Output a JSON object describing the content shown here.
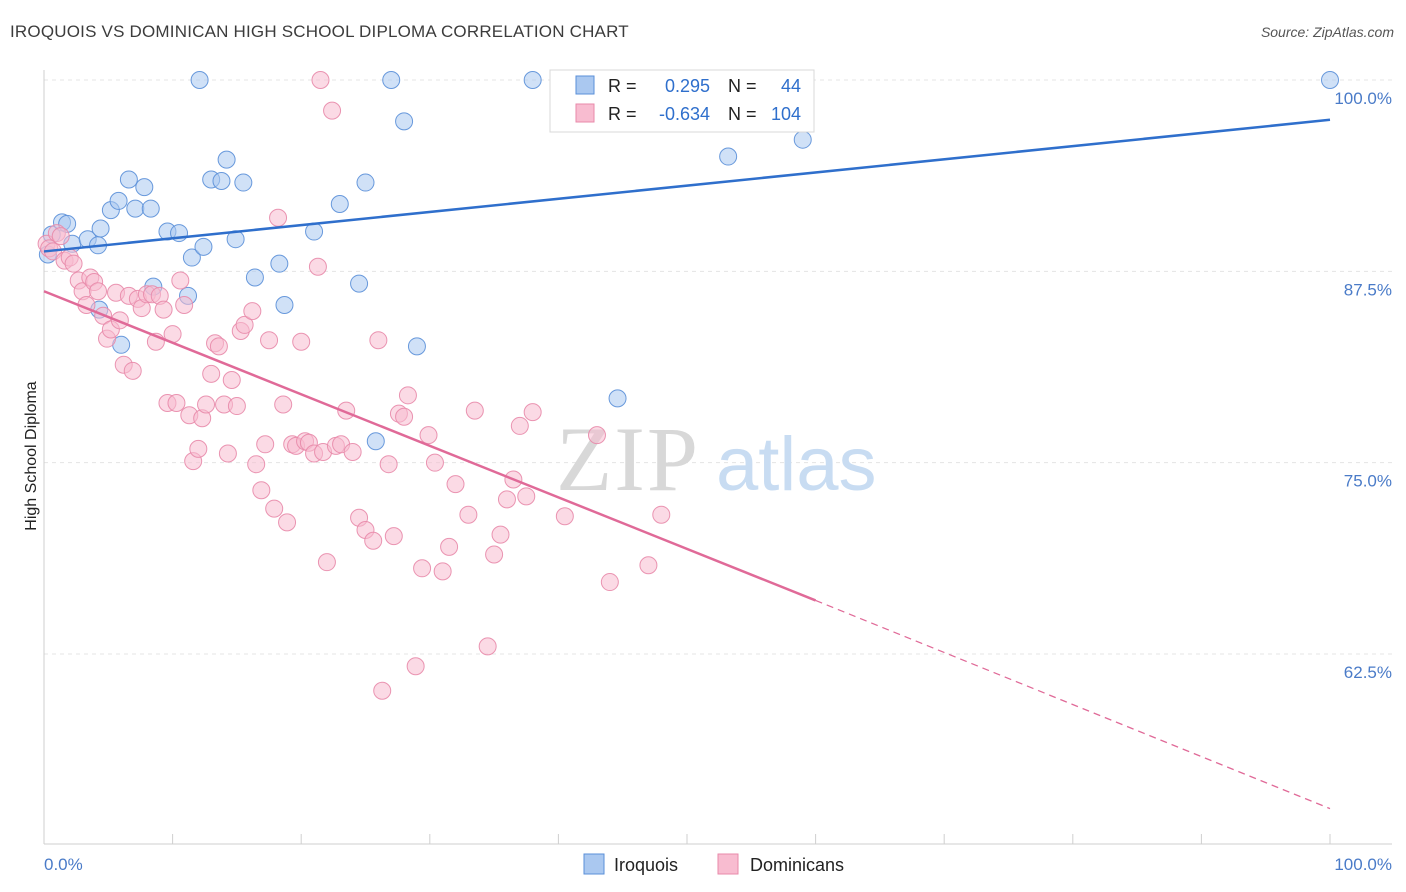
{
  "header": {
    "title": "IROQUOIS VS DOMINICAN HIGH SCHOOL DIPLOMA CORRELATION CHART",
    "source": "Source: ZipAtlas.com"
  },
  "watermark": {
    "zip": "ZIP",
    "atlas": "atlas"
  },
  "legend_box": {
    "rows": [
      {
        "r_label": "R =",
        "r_value": "0.295",
        "n_label": "N =",
        "n_value": "44"
      },
      {
        "r_label": "R =",
        "r_value": "-0.634",
        "n_label": "N =",
        "n_value": "104"
      }
    ]
  },
  "colors": {
    "iroquois_fill": "#aac8f0",
    "iroquois_stroke": "#5a8fd8",
    "iroquois_line": "#2f6fcc",
    "dominican_fill": "#f8bcd0",
    "dominican_stroke": "#e88aaa",
    "dominican_line": "#e06a98",
    "tick_text": "#4a7bc8"
  },
  "chart_data": {
    "type": "scatter",
    "ylabel": "High School Diploma",
    "xlim": [
      0,
      100
    ],
    "ylim": [
      51.5,
      101.5
    ],
    "x_tick_labels": [
      "0.0%",
      "100.0%"
    ],
    "y_ticks": [
      {
        "value": 100,
        "label": "100.0%"
      },
      {
        "value": 87.5,
        "label": "87.5%"
      },
      {
        "value": 75,
        "label": "75.0%"
      },
      {
        "value": 62.5,
        "label": "62.5%"
      }
    ],
    "legend": [
      "Iroquois",
      "Dominicans"
    ],
    "series": [
      {
        "name": "Iroquois",
        "trend": {
          "x": [
            0,
            100
          ],
          "y": [
            88.8,
            97.4
          ],
          "dashed_from": null
        },
        "points": [
          [
            0.3,
            88.6
          ],
          [
            0.6,
            89.9
          ],
          [
            1.4,
            90.7
          ],
          [
            1.8,
            90.6
          ],
          [
            2.2,
            89.3
          ],
          [
            3.4,
            89.6
          ],
          [
            4.2,
            89.2
          ],
          [
            4.3,
            85.0
          ],
          [
            4.4,
            90.3
          ],
          [
            5.2,
            91.5
          ],
          [
            5.8,
            92.1
          ],
          [
            6.0,
            82.7
          ],
          [
            6.6,
            93.5
          ],
          [
            7.1,
            91.6
          ],
          [
            7.8,
            93.0
          ],
          [
            8.3,
            91.6
          ],
          [
            8.5,
            86.5
          ],
          [
            9.6,
            90.1
          ],
          [
            10.5,
            90.0
          ],
          [
            11.5,
            88.4
          ],
          [
            11.2,
            85.9
          ],
          [
            12.1,
            100.0
          ],
          [
            12.4,
            89.1
          ],
          [
            13.0,
            93.5
          ],
          [
            13.8,
            93.4
          ],
          [
            14.2,
            94.8
          ],
          [
            14.9,
            89.6
          ],
          [
            15.5,
            93.3
          ],
          [
            16.4,
            87.1
          ],
          [
            18.3,
            88.0
          ],
          [
            18.7,
            85.3
          ],
          [
            21.0,
            90.1
          ],
          [
            23.0,
            91.9
          ],
          [
            24.5,
            86.7
          ],
          [
            25.0,
            93.3
          ],
          [
            25.8,
            76.4
          ],
          [
            27.0,
            100.0
          ],
          [
            28.0,
            97.3
          ],
          [
            29.0,
            82.6
          ],
          [
            38.0,
            100.0
          ],
          [
            44.6,
            79.2
          ],
          [
            53.2,
            95.0
          ],
          [
            59.0,
            96.1
          ],
          [
            100.0,
            100.0
          ]
        ]
      },
      {
        "name": "Dominicans",
        "trend": {
          "x": [
            0,
            60,
            100
          ],
          "y": [
            86.2,
            66.0,
            52.4
          ],
          "dashed_from": 60
        },
        "points": [
          [
            0.2,
            89.3
          ],
          [
            0.4,
            89.0
          ],
          [
            0.7,
            88.8
          ],
          [
            1.0,
            90.0
          ],
          [
            1.3,
            89.8
          ],
          [
            1.6,
            88.2
          ],
          [
            2.0,
            88.4
          ],
          [
            2.3,
            88.0
          ],
          [
            2.7,
            86.9
          ],
          [
            3.0,
            86.2
          ],
          [
            3.3,
            85.3
          ],
          [
            3.6,
            87.1
          ],
          [
            3.9,
            86.8
          ],
          [
            4.2,
            86.2
          ],
          [
            4.6,
            84.6
          ],
          [
            4.9,
            83.1
          ],
          [
            5.2,
            83.7
          ],
          [
            5.6,
            86.1
          ],
          [
            5.9,
            84.3
          ],
          [
            6.2,
            81.4
          ],
          [
            6.6,
            85.9
          ],
          [
            6.9,
            81.0
          ],
          [
            7.3,
            85.7
          ],
          [
            7.6,
            85.1
          ],
          [
            8.0,
            86.0
          ],
          [
            8.4,
            86.0
          ],
          [
            8.7,
            82.9
          ],
          [
            9.0,
            85.9
          ],
          [
            9.3,
            85.0
          ],
          [
            9.6,
            78.9
          ],
          [
            10.0,
            83.4
          ],
          [
            10.3,
            78.9
          ],
          [
            10.6,
            86.9
          ],
          [
            10.9,
            85.3
          ],
          [
            11.3,
            78.1
          ],
          [
            11.6,
            75.1
          ],
          [
            12.0,
            75.9
          ],
          [
            12.3,
            77.9
          ],
          [
            12.6,
            78.8
          ],
          [
            13.0,
            80.8
          ],
          [
            13.3,
            82.8
          ],
          [
            13.6,
            82.6
          ],
          [
            14.0,
            78.8
          ],
          [
            14.3,
            75.6
          ],
          [
            14.6,
            80.4
          ],
          [
            15.0,
            78.7
          ],
          [
            15.3,
            83.6
          ],
          [
            15.6,
            84.0
          ],
          [
            16.2,
            84.9
          ],
          [
            16.5,
            74.9
          ],
          [
            16.9,
            73.2
          ],
          [
            17.2,
            76.2
          ],
          [
            17.5,
            83.0
          ],
          [
            17.9,
            72.0
          ],
          [
            18.2,
            91.0
          ],
          [
            18.6,
            78.8
          ],
          [
            18.9,
            71.1
          ],
          [
            19.3,
            76.2
          ],
          [
            19.6,
            76.1
          ],
          [
            20.0,
            82.9
          ],
          [
            20.3,
            76.4
          ],
          [
            20.6,
            76.3
          ],
          [
            21.0,
            75.6
          ],
          [
            21.3,
            87.8
          ],
          [
            21.7,
            75.7
          ],
          [
            22.0,
            68.5
          ],
          [
            22.4,
            98.0
          ],
          [
            22.7,
            76.1
          ],
          [
            23.1,
            76.2
          ],
          [
            23.5,
            78.4
          ],
          [
            24.0,
            75.7
          ],
          [
            24.5,
            71.4
          ],
          [
            25.0,
            70.6
          ],
          [
            25.6,
            69.9
          ],
          [
            26.0,
            83.0
          ],
          [
            26.3,
            60.1
          ],
          [
            26.8,
            74.9
          ],
          [
            27.2,
            70.2
          ],
          [
            27.6,
            78.2
          ],
          [
            28.0,
            78.0
          ],
          [
            28.3,
            79.4
          ],
          [
            28.9,
            61.7
          ],
          [
            29.4,
            68.1
          ],
          [
            29.9,
            76.8
          ],
          [
            30.4,
            75.0
          ],
          [
            31.0,
            67.9
          ],
          [
            31.5,
            69.5
          ],
          [
            32.0,
            73.6
          ],
          [
            33.0,
            71.6
          ],
          [
            33.5,
            78.4
          ],
          [
            34.5,
            63.0
          ],
          [
            35.0,
            69.0
          ],
          [
            35.5,
            70.3
          ],
          [
            36.0,
            72.6
          ],
          [
            36.5,
            73.9
          ],
          [
            37.0,
            77.4
          ],
          [
            37.5,
            72.8
          ],
          [
            38.0,
            78.3
          ],
          [
            40.5,
            71.5
          ],
          [
            43.0,
            76.8
          ],
          [
            44.0,
            67.2
          ],
          [
            47.0,
            68.3
          ],
          [
            48.0,
            71.6
          ],
          [
            21.5,
            100.0
          ]
        ]
      }
    ]
  }
}
